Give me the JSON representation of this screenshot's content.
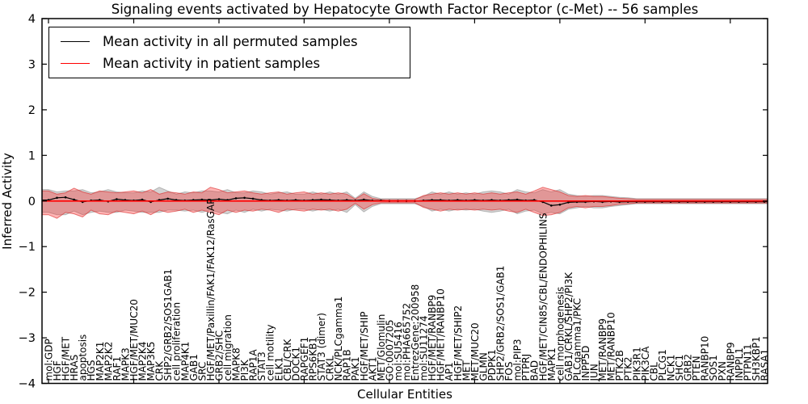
{
  "title": "Signaling events activated by Hepatocyte Growth Factor Receptor (c-Met) -- 56 samples",
  "legend": [
    {
      "label": "Mean activity in all permuted samples",
      "color": "#000000"
    },
    {
      "label": "Mean activity in patient samples",
      "color": "#ff0000"
    }
  ],
  "axes": {
    "xlabel": "Cellular Entities",
    "ylabel": "Inferred Activity",
    "yticks": [
      4,
      3,
      2,
      1,
      0,
      -1,
      -2,
      -3,
      -4
    ],
    "ylim": [
      -4,
      4
    ],
    "x_major_tick_every": 10
  },
  "chart_data": {
    "type": "line",
    "title": "Signaling events activated by Hepatocyte Growth Factor Receptor (c-Met) -- 56 samples",
    "xlabel": "Cellular Entities",
    "ylabel": "Inferred Activity",
    "ylim": [
      -4,
      4
    ],
    "grid": false,
    "legend_position": "upper left",
    "categories": [
      "mol:GDP",
      "HGF",
      "HGF/MET",
      "HRAS",
      "apoptosis",
      "HGS",
      "MAP2K1",
      "MAP2K2",
      "RAF1",
      "MAPK3",
      "HGF/MET/MUC20",
      "MAP2K4",
      "MAP3K5",
      "CRK",
      "SHP2/GRB2/SOS1GAB1",
      "cell proliferation",
      "MAP4K1",
      "GAB1",
      "SRC",
      "HGF/MET/Paxillin/FAK1/FAK12/RasGAP",
      "GRB2/SHC",
      "cell migration",
      "MAPK8",
      "PI3K",
      "RAP1A",
      "STAT3",
      "cell motility",
      "ELK1",
      "CBL/CRK",
      "DOCK1",
      "RAPGEF1",
      "RPS6KB1",
      "STAT3 (dimer)",
      "CRKL",
      "NCK/PLCgamma1",
      "RAP1B",
      "PAK1",
      "HGF/MET/SHIP",
      "AKT1",
      "MET/Glomulin",
      "GO:0007205",
      "mol:SU5416",
      "mol:PHA665752",
      "EntrezGene:200958",
      "mol:SU11274",
      "HGF/MET/RANBP9",
      "HGF/MET/RANBP10",
      "AP1",
      "HGF/MET/SHIP2",
      "MET",
      "MET/MUC20",
      "GLMN",
      "PDPK1",
      "SHP2/GRB2/SOS1/GAB1",
      "FOS",
      "mol:PIP3",
      "PTPRJ",
      "BAD",
      "HGF/MET/CIN85/CBL/ENDOPHILINS",
      "MAPK1",
      "cell morphogenesis",
      "GAB1/CRKL/SHP2/PI3K",
      "PLCgamma1/PKC",
      "INPP5D",
      "JUN",
      "MET/RANBP9",
      "MET/RANBP10",
      "PTK2B",
      "PTK2",
      "PIK3R1",
      "PIK3CA",
      "CBL",
      "PLCG1",
      "NCK1",
      "SHC1",
      "GRB2",
      "PTEN",
      "RANBP10",
      "SOS1",
      "PXN",
      "RANBP9",
      "INPPL1",
      "PTPN11",
      "SH3KBP1",
      "RASA1"
    ],
    "series": [
      {
        "name": "Mean activity in all permuted samples",
        "color": "#000000",
        "values": [
          0.02,
          0.07,
          0.08,
          0.03,
          -0.02,
          0.01,
          0.02,
          -0.01,
          0.04,
          0.02,
          0.01,
          0.03,
          -0.02,
          0.02,
          0.05,
          0.02,
          0.01,
          0.02,
          0.03,
          0.02,
          0.04,
          0.02,
          0.06,
          0.07,
          0.05,
          0.02,
          0.01,
          0.02,
          0.01,
          0.02,
          0.01,
          0.02,
          0.03,
          0.02,
          0.01,
          0.02,
          0.01,
          0.03,
          0.01,
          0.01,
          0.0,
          0.0,
          0.0,
          0.0,
          0.01,
          0.02,
          0.02,
          0.01,
          0.02,
          0.01,
          0.02,
          0.01,
          0.02,
          0.01,
          0.02,
          0.03,
          0.01,
          0.02,
          -0.02,
          -0.1,
          -0.08,
          -0.03,
          -0.02,
          -0.02,
          -0.01,
          -0.02,
          -0.01,
          -0.02,
          -0.015,
          -0.015,
          -0.015,
          -0.015,
          -0.015,
          -0.015,
          -0.015,
          -0.015,
          -0.015,
          -0.015,
          -0.015,
          -0.015,
          -0.015,
          -0.015,
          -0.015,
          -0.015,
          -0.015
        ]
      },
      {
        "name": "Mean activity in patient samples",
        "color": "#ff0000",
        "values": [
          0,
          0,
          0,
          0,
          0,
          0,
          0,
          0,
          0,
          0,
          0,
          0,
          0,
          0,
          0,
          0,
          0,
          0,
          0,
          0,
          0,
          0,
          0,
          0,
          0,
          0,
          0,
          0,
          0,
          0,
          0,
          0,
          0,
          0,
          0,
          0,
          0,
          0,
          0,
          0,
          0,
          0,
          0,
          0,
          0,
          0,
          0,
          0,
          0,
          0,
          0,
          0,
          0,
          0,
          0,
          0,
          0,
          0,
          0,
          0,
          0,
          0,
          0,
          0,
          0,
          0,
          0,
          0,
          0,
          0,
          0,
          0,
          0,
          0,
          0,
          0,
          0,
          0,
          0,
          0,
          0,
          0,
          0,
          0,
          0
        ]
      }
    ],
    "bands": [
      {
        "name": "permuted-samples-spread",
        "fill": "rgba(130,130,130,0.35)",
        "edge": "rgba(120,120,120,0.45)",
        "upper": [
          0.25,
          0.2,
          0.22,
          0.22,
          0.25,
          0.18,
          0.2,
          0.25,
          0.2,
          0.18,
          0.18,
          0.22,
          0.2,
          0.3,
          0.22,
          0.15,
          0.2,
          0.18,
          0.22,
          0.22,
          0.2,
          0.25,
          0.18,
          0.18,
          0.22,
          0.2,
          0.15,
          0.18,
          0.2,
          0.15,
          0.15,
          0.2,
          0.15,
          0.2,
          0.15,
          0.2,
          0.06,
          0.2,
          0.1,
          0.05,
          0.05,
          0.05,
          0.05,
          0.05,
          0.1,
          0.2,
          0.15,
          0.2,
          0.15,
          0.18,
          0.15,
          0.2,
          0.22,
          0.2,
          0.15,
          0.25,
          0.2,
          0.18,
          0.25,
          0.2,
          0.25,
          0.15,
          0.12,
          0.1,
          0.12,
          0.12,
          0.1,
          0.08,
          0.07,
          0.05,
          0.05,
          0.05,
          0.05,
          0.05,
          0.05,
          0.05,
          0.05,
          0.05,
          0.05,
          0.05,
          0.05,
          0.05,
          0.05,
          0.05,
          0.05
        ],
        "lower": [
          -0.25,
          -0.3,
          -0.3,
          -0.22,
          -0.3,
          -0.25,
          -0.22,
          -0.25,
          -0.25,
          -0.2,
          -0.22,
          -0.25,
          -0.25,
          -0.25,
          -0.2,
          -0.2,
          -0.22,
          -0.2,
          -0.25,
          -0.2,
          -0.25,
          -0.28,
          -0.2,
          -0.25,
          -0.18,
          -0.22,
          -0.18,
          -0.2,
          -0.22,
          -0.18,
          -0.18,
          -0.22,
          -0.18,
          -0.22,
          -0.18,
          -0.25,
          -0.08,
          -0.24,
          -0.12,
          -0.06,
          -0.06,
          -0.06,
          -0.06,
          -0.06,
          -0.12,
          -0.22,
          -0.18,
          -0.22,
          -0.18,
          -0.2,
          -0.18,
          -0.22,
          -0.25,
          -0.22,
          -0.18,
          -0.28,
          -0.22,
          -0.2,
          -0.28,
          -0.25,
          -0.28,
          -0.18,
          -0.15,
          -0.12,
          -0.15,
          -0.15,
          -0.12,
          -0.1,
          -0.08,
          -0.06,
          -0.06,
          -0.06,
          -0.06,
          -0.06,
          -0.06,
          -0.06,
          -0.06,
          -0.06,
          -0.06,
          -0.06,
          -0.06,
          -0.06,
          -0.06,
          -0.06,
          -0.06
        ]
      },
      {
        "name": "patient-samples-spread",
        "fill": "rgba(255,30,30,0.33)",
        "edge": "rgba(215,40,40,0.6)",
        "upper": [
          0.22,
          0.15,
          0.18,
          0.28,
          0.2,
          0.15,
          0.22,
          0.2,
          0.18,
          0.2,
          0.22,
          0.18,
          0.25,
          0.15,
          0.2,
          0.18,
          0.15,
          0.2,
          0.18,
          0.3,
          0.25,
          0.18,
          0.2,
          0.22,
          0.18,
          0.15,
          0.18,
          0.2,
          0.15,
          0.18,
          0.2,
          0.15,
          0.18,
          0.15,
          0.18,
          0.15,
          0.04,
          0.16,
          0.06,
          0.03,
          0.03,
          0.03,
          0.03,
          0.03,
          0.12,
          0.15,
          0.18,
          0.15,
          0.18,
          0.15,
          0.18,
          0.15,
          0.18,
          0.15,
          0.18,
          0.2,
          0.15,
          0.22,
          0.3,
          0.25,
          0.2,
          0.12,
          0.1,
          0.12,
          0.1,
          0.1,
          0.08,
          0.06,
          0.05,
          0.035,
          0.035,
          0.035,
          0.035,
          0.035,
          0.035,
          0.035,
          0.035,
          0.035,
          0.035,
          0.035,
          0.035,
          0.035,
          0.035,
          0.035,
          0.035
        ],
        "lower": [
          -0.3,
          -0.38,
          -0.25,
          -0.28,
          -0.35,
          -0.2,
          -0.28,
          -0.3,
          -0.22,
          -0.25,
          -0.28,
          -0.22,
          -0.3,
          -0.2,
          -0.25,
          -0.22,
          -0.18,
          -0.25,
          -0.2,
          -0.25,
          -0.3,
          -0.2,
          -0.25,
          -0.2,
          -0.22,
          -0.18,
          -0.2,
          -0.25,
          -0.18,
          -0.2,
          -0.22,
          -0.18,
          -0.2,
          -0.18,
          -0.22,
          -0.18,
          -0.05,
          -0.18,
          -0.08,
          -0.04,
          -0.04,
          -0.04,
          -0.04,
          -0.04,
          -0.14,
          -0.18,
          -0.22,
          -0.18,
          -0.2,
          -0.18,
          -0.2,
          -0.18,
          -0.2,
          -0.18,
          -0.22,
          -0.25,
          -0.18,
          -0.25,
          -0.32,
          -0.3,
          -0.25,
          -0.15,
          -0.12,
          -0.15,
          -0.12,
          -0.12,
          -0.1,
          -0.07,
          -0.06,
          -0.045,
          -0.045,
          -0.045,
          -0.045,
          -0.045,
          -0.045,
          -0.045,
          -0.045,
          -0.045,
          -0.045,
          -0.045,
          -0.045,
          -0.045,
          -0.045,
          -0.045,
          -0.045
        ]
      }
    ]
  }
}
